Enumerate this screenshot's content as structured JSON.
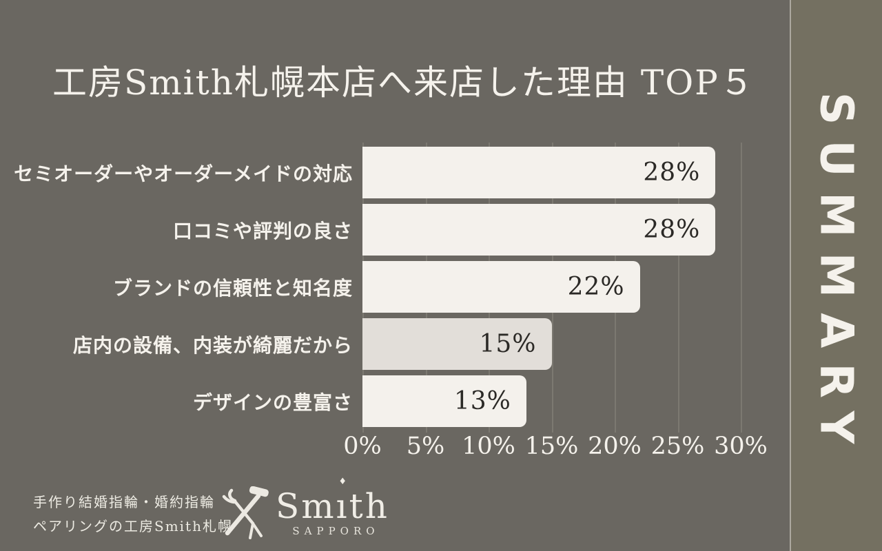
{
  "page": {
    "background": "#6A6761",
    "sidebar_background": "#747061",
    "divider_color": "#ACA89F",
    "text_color": "#F5F2EC"
  },
  "title": "工房Smith札幌本店へ来店した理由 TOP５",
  "sidebar": {
    "label": "SUMMARY"
  },
  "chart_data": {
    "type": "bar",
    "orientation": "horizontal",
    "title": "工房Smith札幌本店へ来店した理由 TOP５",
    "categories": [
      "セミオーダーやオーダーメイドの対応",
      "口コミや評判の良さ",
      "ブランドの信頼性と知名度",
      "店内の設備、内装が綺麗だから",
      "デザインの豊富さ"
    ],
    "values": [
      28,
      28,
      22,
      15,
      13
    ],
    "value_labels": [
      "28%",
      "28%",
      "22%",
      "15%",
      "13%"
    ],
    "xlim": [
      0,
      30
    ],
    "x_ticks": [
      "0%",
      "5%",
      "10%",
      "15%",
      "20%",
      "25%",
      "30%"
    ],
    "grid": true,
    "legend": "none",
    "bar_colors": [
      "#F4F1EC",
      "#F4F1EC",
      "#F4F1EC",
      "#E2DED9",
      "#F4F1EC"
    ],
    "gridline_color": "#7C7971",
    "value_text_color": "#2B2926"
  },
  "footer": {
    "tagline_line1": "手作り結婚指輪・婚約指輪",
    "tagline_line2": "ペアリングの工房Smith札幌",
    "logo": {
      "name": "Smith",
      "name_parts": [
        "Sm",
        "ı",
        "th"
      ],
      "diamond": "♦",
      "subtext": "SAPPORO",
      "icon": "crossed-tools-icon"
    }
  }
}
